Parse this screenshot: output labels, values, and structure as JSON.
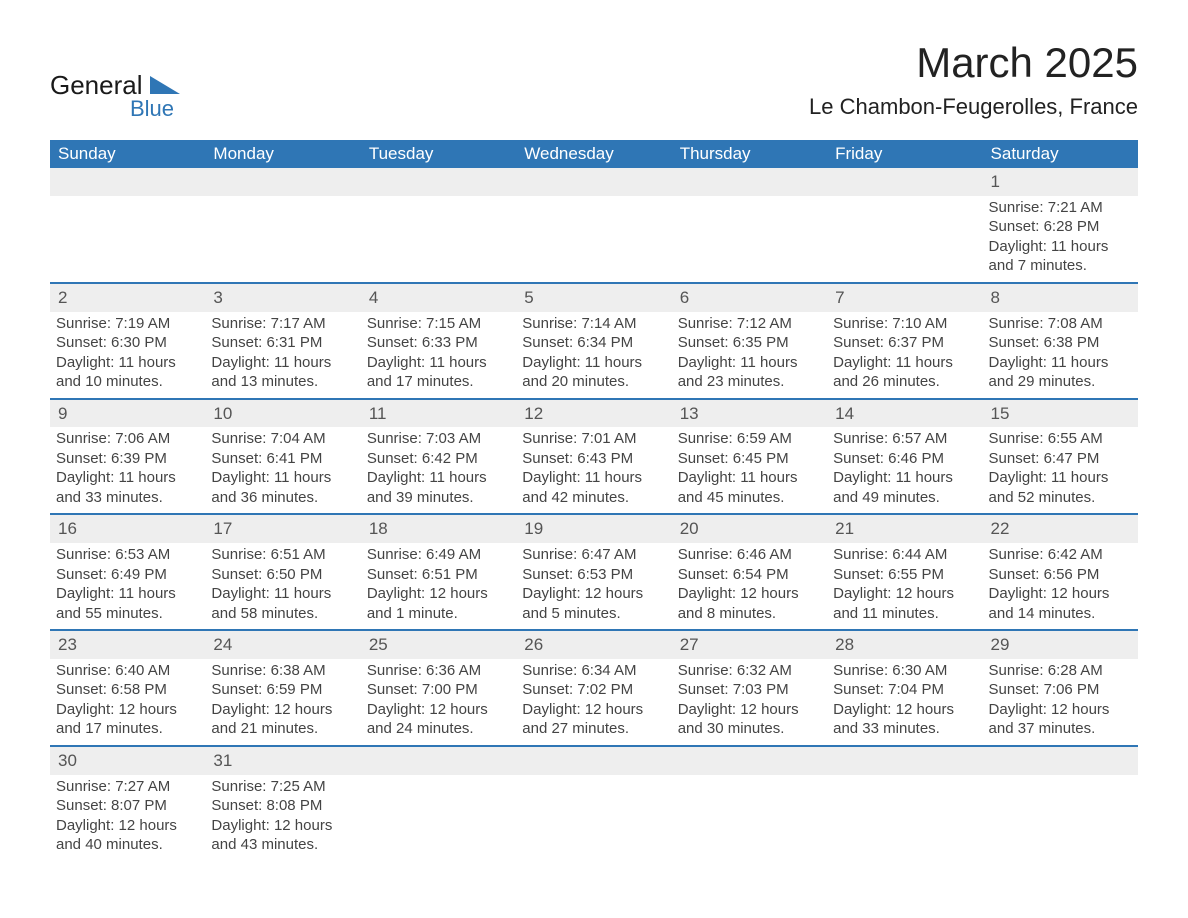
{
  "branding": {
    "logo_text_main": "General",
    "logo_text_sub": "Blue",
    "logo_color_text": "#1a1a1a",
    "logo_color_blue": "#2f76b5"
  },
  "header": {
    "title": "March 2025",
    "subtitle": "Le Chambon-Feugerolles, France",
    "title_fontsize": 42,
    "subtitle_fontsize": 22,
    "title_color": "#222222"
  },
  "calendar": {
    "header_bg": "#2f76b5",
    "header_text_color": "#ffffff",
    "daynum_bg": "#eeeeee",
    "divider_color": "#2f76b5",
    "body_text_color": "#444444",
    "day_labels": [
      "Sunday",
      "Monday",
      "Tuesday",
      "Wednesday",
      "Thursday",
      "Friday",
      "Saturday"
    ],
    "weeks": [
      [
        null,
        null,
        null,
        null,
        null,
        null,
        {
          "n": "1",
          "sr": "Sunrise: 7:21 AM",
          "ss": "Sunset: 6:28 PM",
          "d1": "Daylight: 11 hours",
          "d2": "and 7 minutes."
        }
      ],
      [
        {
          "n": "2",
          "sr": "Sunrise: 7:19 AM",
          "ss": "Sunset: 6:30 PM",
          "d1": "Daylight: 11 hours",
          "d2": "and 10 minutes."
        },
        {
          "n": "3",
          "sr": "Sunrise: 7:17 AM",
          "ss": "Sunset: 6:31 PM",
          "d1": "Daylight: 11 hours",
          "d2": "and 13 minutes."
        },
        {
          "n": "4",
          "sr": "Sunrise: 7:15 AM",
          "ss": "Sunset: 6:33 PM",
          "d1": "Daylight: 11 hours",
          "d2": "and 17 minutes."
        },
        {
          "n": "5",
          "sr": "Sunrise: 7:14 AM",
          "ss": "Sunset: 6:34 PM",
          "d1": "Daylight: 11 hours",
          "d2": "and 20 minutes."
        },
        {
          "n": "6",
          "sr": "Sunrise: 7:12 AM",
          "ss": "Sunset: 6:35 PM",
          "d1": "Daylight: 11 hours",
          "d2": "and 23 minutes."
        },
        {
          "n": "7",
          "sr": "Sunrise: 7:10 AM",
          "ss": "Sunset: 6:37 PM",
          "d1": "Daylight: 11 hours",
          "d2": "and 26 minutes."
        },
        {
          "n": "8",
          "sr": "Sunrise: 7:08 AM",
          "ss": "Sunset: 6:38 PM",
          "d1": "Daylight: 11 hours",
          "d2": "and 29 minutes."
        }
      ],
      [
        {
          "n": "9",
          "sr": "Sunrise: 7:06 AM",
          "ss": "Sunset: 6:39 PM",
          "d1": "Daylight: 11 hours",
          "d2": "and 33 minutes."
        },
        {
          "n": "10",
          "sr": "Sunrise: 7:04 AM",
          "ss": "Sunset: 6:41 PM",
          "d1": "Daylight: 11 hours",
          "d2": "and 36 minutes."
        },
        {
          "n": "11",
          "sr": "Sunrise: 7:03 AM",
          "ss": "Sunset: 6:42 PM",
          "d1": "Daylight: 11 hours",
          "d2": "and 39 minutes."
        },
        {
          "n": "12",
          "sr": "Sunrise: 7:01 AM",
          "ss": "Sunset: 6:43 PM",
          "d1": "Daylight: 11 hours",
          "d2": "and 42 minutes."
        },
        {
          "n": "13",
          "sr": "Sunrise: 6:59 AM",
          "ss": "Sunset: 6:45 PM",
          "d1": "Daylight: 11 hours",
          "d2": "and 45 minutes."
        },
        {
          "n": "14",
          "sr": "Sunrise: 6:57 AM",
          "ss": "Sunset: 6:46 PM",
          "d1": "Daylight: 11 hours",
          "d2": "and 49 minutes."
        },
        {
          "n": "15",
          "sr": "Sunrise: 6:55 AM",
          "ss": "Sunset: 6:47 PM",
          "d1": "Daylight: 11 hours",
          "d2": "and 52 minutes."
        }
      ],
      [
        {
          "n": "16",
          "sr": "Sunrise: 6:53 AM",
          "ss": "Sunset: 6:49 PM",
          "d1": "Daylight: 11 hours",
          "d2": "and 55 minutes."
        },
        {
          "n": "17",
          "sr": "Sunrise: 6:51 AM",
          "ss": "Sunset: 6:50 PM",
          "d1": "Daylight: 11 hours",
          "d2": "and 58 minutes."
        },
        {
          "n": "18",
          "sr": "Sunrise: 6:49 AM",
          "ss": "Sunset: 6:51 PM",
          "d1": "Daylight: 12 hours",
          "d2": "and 1 minute."
        },
        {
          "n": "19",
          "sr": "Sunrise: 6:47 AM",
          "ss": "Sunset: 6:53 PM",
          "d1": "Daylight: 12 hours",
          "d2": "and 5 minutes."
        },
        {
          "n": "20",
          "sr": "Sunrise: 6:46 AM",
          "ss": "Sunset: 6:54 PM",
          "d1": "Daylight: 12 hours",
          "d2": "and 8 minutes."
        },
        {
          "n": "21",
          "sr": "Sunrise: 6:44 AM",
          "ss": "Sunset: 6:55 PM",
          "d1": "Daylight: 12 hours",
          "d2": "and 11 minutes."
        },
        {
          "n": "22",
          "sr": "Sunrise: 6:42 AM",
          "ss": "Sunset: 6:56 PM",
          "d1": "Daylight: 12 hours",
          "d2": "and 14 minutes."
        }
      ],
      [
        {
          "n": "23",
          "sr": "Sunrise: 6:40 AM",
          "ss": "Sunset: 6:58 PM",
          "d1": "Daylight: 12 hours",
          "d2": "and 17 minutes."
        },
        {
          "n": "24",
          "sr": "Sunrise: 6:38 AM",
          "ss": "Sunset: 6:59 PM",
          "d1": "Daylight: 12 hours",
          "d2": "and 21 minutes."
        },
        {
          "n": "25",
          "sr": "Sunrise: 6:36 AM",
          "ss": "Sunset: 7:00 PM",
          "d1": "Daylight: 12 hours",
          "d2": "and 24 minutes."
        },
        {
          "n": "26",
          "sr": "Sunrise: 6:34 AM",
          "ss": "Sunset: 7:02 PM",
          "d1": "Daylight: 12 hours",
          "d2": "and 27 minutes."
        },
        {
          "n": "27",
          "sr": "Sunrise: 6:32 AM",
          "ss": "Sunset: 7:03 PM",
          "d1": "Daylight: 12 hours",
          "d2": "and 30 minutes."
        },
        {
          "n": "28",
          "sr": "Sunrise: 6:30 AM",
          "ss": "Sunset: 7:04 PM",
          "d1": "Daylight: 12 hours",
          "d2": "and 33 minutes."
        },
        {
          "n": "29",
          "sr": "Sunrise: 6:28 AM",
          "ss": "Sunset: 7:06 PM",
          "d1": "Daylight: 12 hours",
          "d2": "and 37 minutes."
        }
      ],
      [
        {
          "n": "30",
          "sr": "Sunrise: 7:27 AM",
          "ss": "Sunset: 8:07 PM",
          "d1": "Daylight: 12 hours",
          "d2": "and 40 minutes."
        },
        {
          "n": "31",
          "sr": "Sunrise: 7:25 AM",
          "ss": "Sunset: 8:08 PM",
          "d1": "Daylight: 12 hours",
          "d2": "and 43 minutes."
        },
        null,
        null,
        null,
        null,
        null
      ]
    ]
  }
}
